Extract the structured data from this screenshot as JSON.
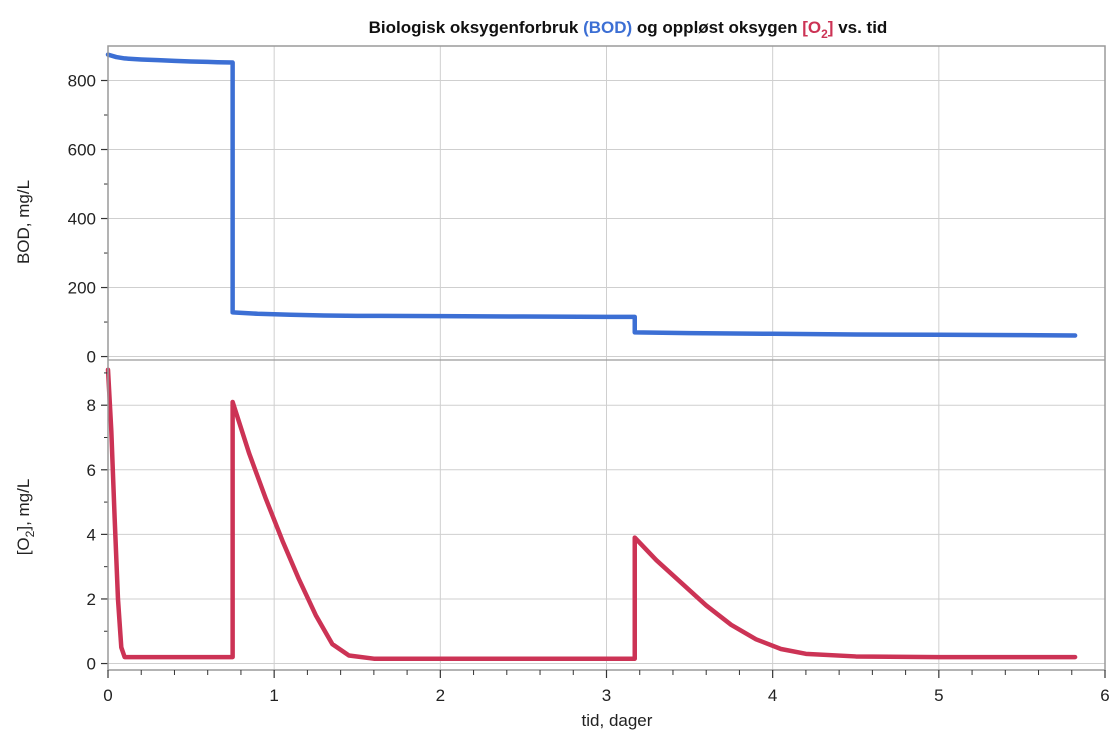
{
  "chart_data": {
    "type": "line",
    "title": {
      "part1": "Biologisk oksygenforbruk ",
      "bod": "(BOD)",
      "part2": " og oppløst oksygen ",
      "o2_open": "[O",
      "o2_sub": "2",
      "o2_close": "]",
      "part3": "  vs. tid"
    },
    "xlabel": "tid, dager",
    "xlim": [
      0,
      6
    ],
    "xticks": [
      0,
      1,
      2,
      3,
      4,
      5,
      6
    ],
    "grid": true,
    "colors": {
      "bod": "#3c6fd4",
      "o2": "#cc3355",
      "grid": "#cfcfcf"
    },
    "panels": [
      {
        "id": "bod",
        "ylabel": "BOD, mg/L",
        "ylim": [
          -10,
          900
        ],
        "yticks": [
          0,
          200,
          400,
          600,
          800
        ],
        "series": [
          {
            "color": "#3c6fd4",
            "points": [
              [
                0,
                875
              ],
              [
                0.05,
                868
              ],
              [
                0.1,
                864
              ],
              [
                0.2,
                861
              ],
              [
                0.3,
                859
              ],
              [
                0.4,
                857
              ],
              [
                0.5,
                855
              ],
              [
                0.6,
                854
              ],
              [
                0.66,
                853
              ],
              [
                0.75,
                852
              ],
              [
                0.75,
                128
              ],
              [
                0.9,
                124
              ],
              [
                1.1,
                121
              ],
              [
                1.3,
                119
              ],
              [
                1.5,
                118
              ],
              [
                2.0,
                117
              ],
              [
                2.5,
                116
              ],
              [
                3.0,
                115
              ],
              [
                3.17,
                115
              ],
              [
                3.17,
                70
              ],
              [
                3.5,
                68
              ],
              [
                4.0,
                66
              ],
              [
                4.5,
                64
              ],
              [
                5.0,
                63
              ],
              [
                5.5,
                62
              ],
              [
                5.82,
                61
              ]
            ]
          }
        ]
      },
      {
        "id": "o2",
        "ylabel_open": "[O",
        "ylabel_sub": "2",
        "ylabel_close": "], mg/L",
        "ylim": [
          -0.2,
          9.4
        ],
        "yticks": [
          0,
          2,
          4,
          6,
          8
        ],
        "series": [
          {
            "color": "#cc3355",
            "points": [
              [
                0,
                9.1
              ],
              [
                0.02,
                7.2
              ],
              [
                0.04,
                4.5
              ],
              [
                0.06,
                2.0
              ],
              [
                0.08,
                0.5
              ],
              [
                0.1,
                0.2
              ],
              [
                0.3,
                0.2
              ],
              [
                0.5,
                0.2
              ],
              [
                0.75,
                0.2
              ],
              [
                0.75,
                8.1
              ],
              [
                0.85,
                6.5
              ],
              [
                0.95,
                5.1
              ],
              [
                1.05,
                3.8
              ],
              [
                1.15,
                2.6
              ],
              [
                1.25,
                1.5
              ],
              [
                1.35,
                0.6
              ],
              [
                1.45,
                0.25
              ],
              [
                1.6,
                0.15
              ],
              [
                2.0,
                0.15
              ],
              [
                2.5,
                0.15
              ],
              [
                3.0,
                0.15
              ],
              [
                3.17,
                0.15
              ],
              [
                3.17,
                3.9
              ],
              [
                3.3,
                3.2
              ],
              [
                3.45,
                2.5
              ],
              [
                3.6,
                1.8
              ],
              [
                3.75,
                1.2
              ],
              [
                3.9,
                0.75
              ],
              [
                4.05,
                0.45
              ],
              [
                4.2,
                0.3
              ],
              [
                4.5,
                0.22
              ],
              [
                5.0,
                0.2
              ],
              [
                5.5,
                0.2
              ],
              [
                5.82,
                0.2
              ]
            ]
          }
        ]
      }
    ]
  }
}
